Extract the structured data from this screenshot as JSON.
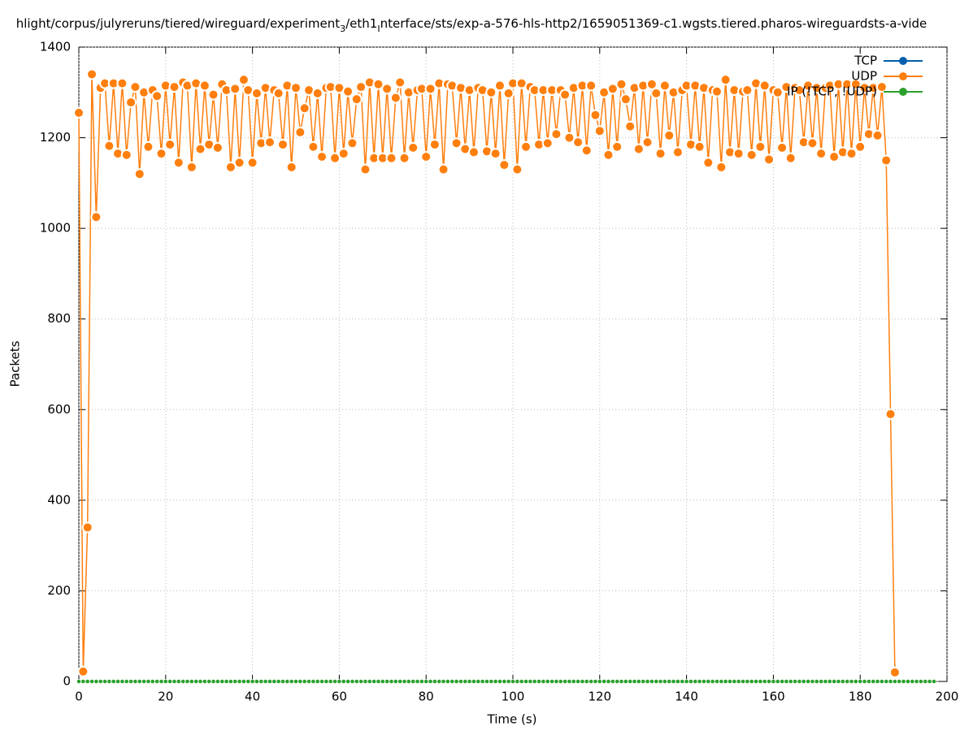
{
  "chart_data": {
    "type": "line",
    "title_parts": [
      "hlight/corpus/julyreruns/tiered/wireguard/experiment",
      "3",
      "/eth1",
      "I",
      "nterface/sts/exp-a-576-hls-http2/1659051369-c1.wgsts.tiered.pharos-wireguardsts-a-vide"
    ],
    "xlabel": "Time (s)",
    "ylabel": "Packets",
    "xlim": [
      0,
      200
    ],
    "xticks": [
      0,
      20,
      40,
      60,
      80,
      100,
      120,
      140,
      160,
      180,
      200
    ],
    "ylim": [
      0,
      1400
    ],
    "yticks": [
      0,
      200,
      400,
      600,
      800,
      1000,
      1200,
      1400
    ],
    "grid": true,
    "legend": "top-right",
    "x": [
      0,
      1,
      2,
      3,
      4,
      5,
      6,
      7,
      8,
      9,
      10,
      11,
      12,
      13,
      14,
      15,
      16,
      17,
      18,
      19,
      20,
      21,
      22,
      23,
      24,
      25,
      26,
      27,
      28,
      29,
      30,
      31,
      32,
      33,
      34,
      35,
      36,
      37,
      38,
      39,
      40,
      41,
      42,
      43,
      44,
      45,
      46,
      47,
      48,
      49,
      50,
      51,
      52,
      53,
      54,
      55,
      56,
      57,
      58,
      59,
      60,
      61,
      62,
      63,
      64,
      65,
      66,
      67,
      68,
      69,
      70,
      71,
      72,
      73,
      74,
      75,
      76,
      77,
      78,
      79,
      80,
      81,
      82,
      83,
      84,
      85,
      86,
      87,
      88,
      89,
      90,
      91,
      92,
      93,
      94,
      95,
      96,
      97,
      98,
      99,
      100,
      101,
      102,
      103,
      104,
      105,
      106,
      107,
      108,
      109,
      110,
      111,
      112,
      113,
      114,
      115,
      116,
      117,
      118,
      119,
      120,
      121,
      122,
      123,
      124,
      125,
      126,
      127,
      128,
      129,
      130,
      131,
      132,
      133,
      134,
      135,
      136,
      137,
      138,
      139,
      140,
      141,
      142,
      143,
      144,
      145,
      146,
      147,
      148,
      149,
      150,
      151,
      152,
      153,
      154,
      155,
      156,
      157,
      158,
      159,
      160,
      161,
      162,
      163,
      164,
      165,
      166,
      167,
      168,
      169,
      170,
      171,
      172,
      173,
      174,
      175,
      176,
      177,
      178,
      179,
      180,
      181,
      182,
      183,
      184,
      185,
      186,
      187,
      188,
      189,
      190,
      191,
      192,
      193,
      194,
      195,
      196,
      197
    ],
    "series": [
      {
        "name": "TCP",
        "color": "#0060ad",
        "values": [
          0,
          0,
          0,
          0,
          0,
          0,
          0,
          0,
          0,
          0,
          0,
          0,
          0,
          0,
          0,
          0,
          0,
          0,
          0,
          0,
          0,
          0,
          0,
          0,
          0,
          0,
          0,
          0,
          0,
          0,
          0,
          0,
          0,
          0,
          0,
          0,
          0,
          0,
          0,
          0,
          0,
          0,
          0,
          0,
          0,
          0,
          0,
          0,
          0,
          0,
          0,
          0,
          0,
          0,
          0,
          0,
          0,
          0,
          0,
          0,
          0,
          0,
          0,
          0,
          0,
          0,
          0,
          0,
          0,
          0,
          0,
          0,
          0,
          0,
          0,
          0,
          0,
          0,
          0,
          0,
          0,
          0,
          0,
          0,
          0,
          0,
          0,
          0,
          0,
          0,
          0,
          0,
          0,
          0,
          0,
          0,
          0,
          0,
          0,
          0,
          0,
          0,
          0,
          0,
          0,
          0,
          0,
          0,
          0,
          0,
          0,
          0,
          0,
          0,
          0,
          0,
          0,
          0,
          0,
          0,
          0,
          0,
          0,
          0,
          0,
          0,
          0,
          0,
          0,
          0,
          0,
          0,
          0,
          0,
          0,
          0,
          0,
          0,
          0,
          0,
          0,
          0,
          0,
          0,
          0,
          0,
          0,
          0,
          0,
          0,
          0,
          0,
          0,
          0,
          0,
          0,
          0,
          0,
          0,
          0,
          0,
          0,
          0,
          0,
          0,
          0,
          0,
          0,
          0,
          0,
          0,
          0,
          0,
          0,
          0,
          0,
          0,
          0,
          0,
          0,
          0,
          0,
          0,
          0,
          0,
          0,
          0,
          0,
          0,
          0,
          0,
          0,
          0,
          0,
          0,
          0,
          0,
          0
        ]
      },
      {
        "name": "UDP",
        "color": "#ff7f0e",
        "values": [
          1255,
          22,
          340,
          1340,
          1025,
          1310,
          1320,
          1182,
          1320,
          1165,
          1320,
          1162,
          1278,
          1312,
          1120,
          1300,
          1180,
          1305,
          1292,
          1165,
          1315,
          1185,
          1312,
          1145,
          1322,
          1315,
          1135,
          1320,
          1175,
          1315,
          1185,
          1295,
          1178,
          1318,
          1305,
          1135,
          1308,
          1145,
          1328,
          1305,
          1145,
          1298,
          1188,
          1310,
          1190,
          1305,
          1298,
          1185,
          1315,
          1135,
          1310,
          1212,
          1265,
          1305,
          1180,
          1298,
          1158,
          1310,
          1312,
          1155,
          1310,
          1165,
          1302,
          1188,
          1285,
          1312,
          1130,
          1322,
          1155,
          1318,
          1155,
          1308,
          1155,
          1288,
          1322,
          1155,
          1300,
          1178,
          1305,
          1308,
          1158,
          1308,
          1185,
          1320,
          1130,
          1318,
          1315,
          1188,
          1310,
          1175,
          1305,
          1168,
          1310,
          1305,
          1170,
          1300,
          1165,
          1315,
          1140,
          1298,
          1320,
          1130,
          1320,
          1180,
          1312,
          1305,
          1185,
          1305,
          1188,
          1305,
          1208,
          1305,
          1295,
          1200,
          1310,
          1190,
          1315,
          1172,
          1315,
          1250,
          1215,
          1300,
          1162,
          1308,
          1180,
          1318,
          1285,
          1225,
          1310,
          1175,
          1315,
          1190,
          1318,
          1298,
          1165,
          1315,
          1205,
          1300,
          1168,
          1305,
          1315,
          1185,
          1315,
          1180,
          1310,
          1145,
          1305,
          1302,
          1135,
          1328,
          1168,
          1305,
          1165,
          1302,
          1305,
          1162,
          1320,
          1180,
          1315,
          1152,
          1305,
          1300,
          1178,
          1312,
          1155,
          1310,
          1305,
          1190,
          1315,
          1188,
          1310,
          1165,
          1310,
          1315,
          1158,
          1318,
          1168,
          1318,
          1165,
          1318,
          1180,
          1310,
          1208,
          1310,
          1205,
          1312,
          1150,
          590,
          20,
          null,
          null,
          null,
          null,
          null,
          null,
          null,
          null,
          null
        ]
      },
      {
        "name": "IP (!TCP, !UDP)",
        "color": "#2ca02c",
        "values": [
          0,
          0,
          0,
          0,
          0,
          0,
          0,
          0,
          0,
          0,
          0,
          0,
          0,
          0,
          0,
          0,
          0,
          0,
          0,
          0,
          0,
          0,
          0,
          0,
          0,
          0,
          0,
          0,
          0,
          0,
          0,
          0,
          0,
          0,
          0,
          0,
          0,
          0,
          0,
          0,
          0,
          0,
          0,
          0,
          0,
          0,
          0,
          0,
          0,
          0,
          0,
          0,
          0,
          0,
          0,
          0,
          0,
          0,
          0,
          0,
          0,
          0,
          0,
          0,
          0,
          0,
          0,
          0,
          0,
          0,
          0,
          0,
          0,
          0,
          0,
          0,
          0,
          0,
          0,
          0,
          0,
          0,
          0,
          0,
          0,
          0,
          0,
          0,
          0,
          0,
          0,
          0,
          0,
          0,
          0,
          0,
          0,
          0,
          0,
          0,
          0,
          0,
          0,
          0,
          0,
          0,
          0,
          0,
          0,
          0,
          0,
          0,
          0,
          0,
          0,
          0,
          0,
          0,
          0,
          0,
          0,
          0,
          0,
          0,
          0,
          0,
          0,
          0,
          0,
          0,
          0,
          0,
          0,
          0,
          0,
          0,
          0,
          0,
          0,
          0,
          0,
          0,
          0,
          0,
          0,
          0,
          0,
          0,
          0,
          0,
          0,
          0,
          0,
          0,
          0,
          0,
          0,
          0,
          0,
          0,
          0,
          0,
          0,
          0,
          0,
          0,
          0,
          0,
          0,
          0,
          0,
          0,
          0,
          0,
          0,
          0,
          0,
          0,
          0,
          0,
          0,
          0,
          0,
          0,
          0,
          0,
          0,
          0,
          0,
          0,
          0,
          0,
          0,
          0,
          0,
          0,
          0,
          0
        ]
      }
    ]
  }
}
